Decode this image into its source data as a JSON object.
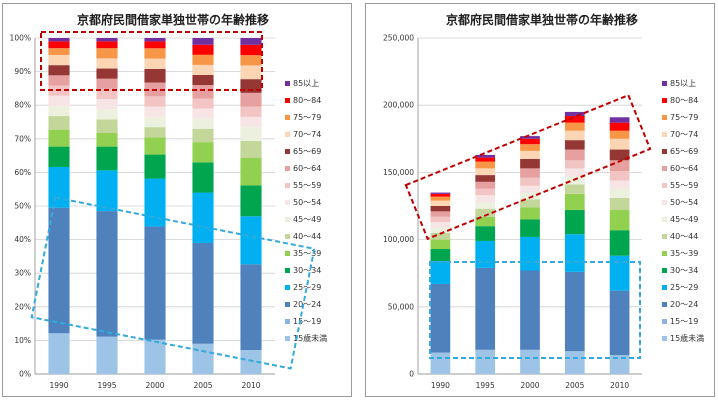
{
  "series_colors": {
    "15歳未満": "#9dc3e6",
    "15～19": "#8db3e2",
    "20～24": "#4f81bd",
    "25～29": "#00b0f0",
    "30～34": "#00a64f",
    "35～39": "#92d050",
    "40～44": "#c4d79b",
    "45～49": "#ebf1de",
    "50～54": "#f7e4e4",
    "55～59": "#f2c4c4",
    "60～64": "#e6a0a0",
    "65～69": "#953735",
    "70～74": "#fcd5b4",
    "75～79": "#f79646",
    "80～84": "#ff0000",
    "85以上": "#7030a0"
  },
  "chart_data": [
    {
      "type": "bar",
      "stacked": "percent",
      "title": "京都府民間借家単独世帯の年齢推移",
      "categories": [
        "1990",
        "1995",
        "2000",
        "2005",
        "2010"
      ],
      "y_tick_labels": [
        "0%",
        "10%",
        "20%",
        "30%",
        "40%",
        "50%",
        "60%",
        "70%",
        "80%",
        "90%",
        "100%"
      ],
      "ylim": [
        0,
        100
      ],
      "grid": true,
      "legend_position": "right",
      "series": [
        {
          "name": "15歳未満",
          "values": [
            12,
            11,
            10,
            9,
            7
          ]
        },
        {
          "name": "15～19",
          "values": [
            0,
            0,
            0,
            0,
            0
          ]
        },
        {
          "name": "20～24",
          "values": [
            37,
            37,
            33,
            30,
            25
          ]
        },
        {
          "name": "25～29",
          "values": [
            12,
            12,
            14,
            15,
            14
          ]
        },
        {
          "name": "30～34",
          "values": [
            6,
            7,
            7,
            9,
            9
          ]
        },
        {
          "name": "35～39",
          "values": [
            5,
            4,
            5,
            6,
            8
          ]
        },
        {
          "name": "40～44",
          "values": [
            4,
            4,
            3,
            4,
            5
          ]
        },
        {
          "name": "45～49",
          "values": [
            3,
            3,
            3,
            3,
            4
          ]
        },
        {
          "name": "50～54",
          "values": [
            3,
            3,
            3,
            3,
            3
          ]
        },
        {
          "name": "55～59",
          "values": [
            3,
            3,
            3,
            3,
            3
          ]
        },
        {
          "name": "60～64",
          "values": [
            3,
            3,
            4,
            4,
            4
          ]
        },
        {
          "name": "65～69",
          "values": [
            3,
            3,
            4,
            3,
            4
          ]
        },
        {
          "name": "70～74",
          "values": [
            3,
            3,
            3,
            3,
            4
          ]
        },
        {
          "name": "75～79",
          "values": [
            2,
            3,
            3,
            3,
            3
          ]
        },
        {
          "name": "80～84",
          "values": [
            2,
            2,
            2,
            3,
            3
          ]
        },
        {
          "name": "85以上",
          "values": [
            1,
            1,
            1,
            2,
            2
          ]
        }
      ],
      "annotations": [
        {
          "shape": "dashed-rect",
          "color": "#c00000",
          "value_range": [
            84,
            101
          ],
          "span": "all-categories"
        },
        {
          "shape": "dashed-rotated-rect",
          "color": "#33aadd",
          "value_range": [
            5,
            52
          ],
          "span": "all-categories"
        }
      ]
    },
    {
      "type": "bar",
      "stacked": "absolute",
      "title": "京都府民間借家単独世帯の年齢推移",
      "categories": [
        "1990",
        "1995",
        "2000",
        "2005",
        "2010"
      ],
      "y_tick_labels": [
        "0",
        "50,000",
        "100,000",
        "150,000",
        "200,000",
        "250,000"
      ],
      "ylim": [
        0,
        250000
      ],
      "grid": true,
      "legend_position": "right",
      "series": [
        {
          "name": "15歳未満",
          "values": [
            16000,
            18000,
            18000,
            17000,
            14000
          ]
        },
        {
          "name": "15～19",
          "values": [
            0,
            0,
            0,
            0,
            0
          ]
        },
        {
          "name": "20～24",
          "values": [
            51000,
            61000,
            59000,
            59000,
            48000
          ]
        },
        {
          "name": "25～29",
          "values": [
            17000,
            20000,
            25000,
            28000,
            26000
          ]
        },
        {
          "name": "30～34",
          "values": [
            9000,
            11000,
            13000,
            18000,
            19000
          ]
        },
        {
          "name": "35～39",
          "values": [
            7000,
            7000,
            9000,
            12000,
            15000
          ]
        },
        {
          "name": "40～44",
          "values": [
            5000,
            6000,
            6000,
            7000,
            9000
          ]
        },
        {
          "name": "45～49",
          "values": [
            4000,
            5000,
            5000,
            6000,
            7000
          ]
        },
        {
          "name": "50～54",
          "values": [
            4000,
            5000,
            5000,
            6000,
            6000
          ]
        },
        {
          "name": "55～59",
          "values": [
            4000,
            5000,
            6000,
            6000,
            7000
          ]
        },
        {
          "name": "60～64",
          "values": [
            4000,
            5000,
            7000,
            8000,
            8000
          ]
        },
        {
          "name": "65～69",
          "values": [
            4000,
            5000,
            7000,
            7000,
            8000
          ]
        },
        {
          "name": "70～74",
          "values": [
            4000,
            5000,
            6000,
            7000,
            8000
          ]
        },
        {
          "name": "75～79",
          "values": [
            3000,
            5000,
            5000,
            6000,
            6000
          ]
        },
        {
          "name": "80～84",
          "values": [
            2000,
            3000,
            4000,
            5000,
            6000
          ]
        },
        {
          "name": "85以上",
          "values": [
            1000,
            2000,
            2000,
            3000,
            4000
          ]
        }
      ],
      "annotations": [
        {
          "shape": "dashed-rotated-rect",
          "color": "#c00000",
          "value_range": [
            100000,
            215000
          ],
          "span": "all-categories"
        },
        {
          "shape": "dashed-rect",
          "color": "#33aadd",
          "value_range": [
            12000,
            83000
          ],
          "span": "all-categories"
        }
      ]
    }
  ]
}
